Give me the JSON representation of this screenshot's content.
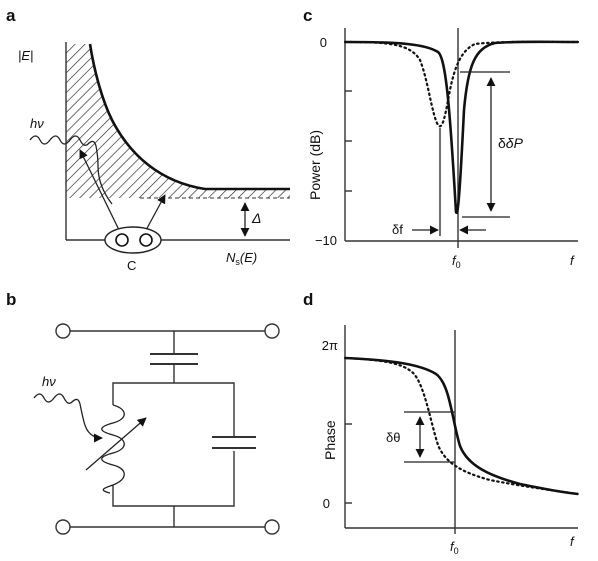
{
  "panels": {
    "a": {
      "letter": "a",
      "y_label": "|E|",
      "photon_label": "hν",
      "gap_label": "Δ",
      "x_label_main": "N",
      "x_label_sub": "s",
      "x_label_tail": "(E)",
      "pair_label": "C"
    },
    "b": {
      "letter": "b",
      "photon_label": "hν"
    },
    "c": {
      "letter": "c",
      "y_label": "Power (dB)",
      "y_ticks": [
        "0",
        "−10"
      ],
      "x_tick_main": "f",
      "x_tick_sub": "0",
      "x_end_label": "f",
      "delta_p_label": "δP",
      "delta_f_label": "δf"
    },
    "d": {
      "letter": "d",
      "y_label": "Phase",
      "y_ticks": [
        "2π",
        "0"
      ],
      "x_tick_main": "f",
      "x_tick_sub": "0",
      "x_end_label": "f",
      "delta_theta_label": "δθ"
    }
  },
  "colors": {
    "ink": "#111111",
    "axis": "#333333",
    "background": "#ffffff"
  }
}
